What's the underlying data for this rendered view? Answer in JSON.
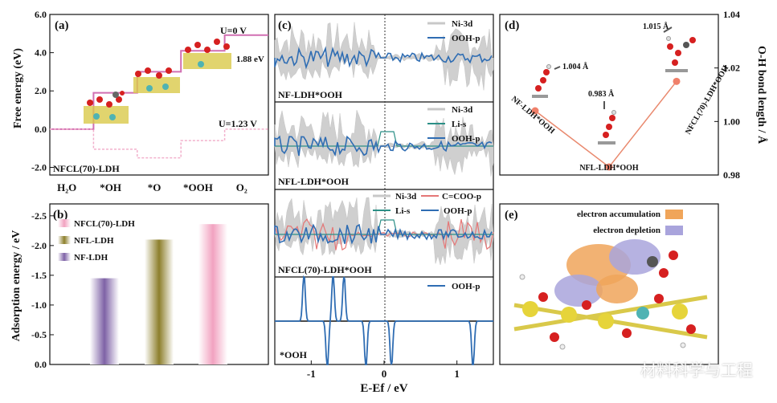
{
  "panel_labels": {
    "a": "(a)",
    "b": "(b)",
    "c": "(c)",
    "d": "(d)",
    "e": "(e)"
  },
  "watermark": "材料科学与工程",
  "chart_data": [
    {
      "id": "a",
      "type": "line",
      "title": "",
      "xlabel": "",
      "ylabel": "Free energy (eV)",
      "ylim": [
        -2.4,
        6.0
      ],
      "yticks": [
        "6.0",
        "4.0",
        "2.0",
        "0.0",
        "-2.0"
      ],
      "ytick_values": [
        6,
        4,
        2,
        0,
        -2
      ],
      "categories": [
        "H₂O",
        "*OH",
        "*O",
        "*OOH",
        "O₂"
      ],
      "series": [
        {
          "name": "U=0 V",
          "values": [
            0.0,
            1.9,
            3.0,
            4.1,
            4.92
          ],
          "color": "#d16fb2"
        },
        {
          "name": "U=1.23 V",
          "values": [
            0.0,
            -1.05,
            -1.5,
            -0.6,
            0.0
          ],
          "color": "#f2b0cc"
        }
      ],
      "annotations": {
        "u0": "U=0 V",
        "gap": "1.88 eV",
        "u123": "U=1.23 V",
        "sample": "NFCL(70)-LDH"
      }
    },
    {
      "id": "b",
      "type": "bar",
      "title": "",
      "ylabel": "Adsorption energy / eV",
      "ylim": [
        0.0,
        -2.6
      ],
      "yticks": [
        "-2.5",
        "-2.0",
        "-1.5",
        "-1.0",
        "-0.5",
        "0.0"
      ],
      "ytick_values": [
        -2.5,
        -2.0,
        -1.5,
        -1.0,
        -0.5,
        0.0
      ],
      "categories": [
        "NF-LDH",
        "NFL-LDH",
        "NFCL(70)-LDH"
      ],
      "values": [
        -1.45,
        -2.1,
        -2.36
      ],
      "colors": [
        "#7e62a6",
        "#8d7f2c",
        "#f2a2c0"
      ],
      "legend": [
        "NFCL(70)-LDH",
        "NFL-LDH",
        "NF-LDH"
      ]
    },
    {
      "id": "c",
      "type": "line",
      "title": "",
      "xlabel": "E-Ef / eV",
      "xticks": [
        "-1",
        "0",
        "1"
      ],
      "xtick_values": [
        -1,
        0,
        1
      ],
      "xlim": [
        -1.5,
        1.5
      ],
      "subpanels": [
        {
          "label": "NF-LDH*OOH",
          "legend": [
            "Ni-3d",
            "OOH-p"
          ]
        },
        {
          "label": "NFL-LDH*OOH",
          "legend": [
            "Ni-3d",
            "Li-s",
            "OOH-p"
          ]
        },
        {
          "label": "NFCL(70)-LDH*OOH",
          "legend": [
            "Ni-3d",
            "C=COO-p",
            "Li-s",
            "OOH-p"
          ]
        },
        {
          "label": "*OOH",
          "legend": [
            "OOH-p"
          ]
        }
      ],
      "series_colors": {
        "Ni-3d": "#c8c8c8",
        "OOH-p": "#2f6db3",
        "Li-s": "#2b8f86",
        "C=COO-p": "#e57777"
      }
    },
    {
      "id": "d",
      "type": "line",
      "ylabel": "O-H bond length / Å",
      "ylim": [
        0.98,
        1.04
      ],
      "yticks": [
        "1.04",
        "1.02",
        "1.00",
        "0.98"
      ],
      "ytick_values": [
        1.04,
        1.02,
        1.0,
        0.98
      ],
      "categories": [
        "NF-LDH*OOH",
        "NFL-LDH*OOH",
        "NFCL(70)-LDH*OOH"
      ],
      "values": [
        1.004,
        0.983,
        1.015
      ],
      "value_labels": [
        "1.004 Å",
        "0.983 Å",
        "1.015 Å"
      ]
    }
  ],
  "panel_e": {
    "legend": [
      "electron accumulation",
      "electron depletion"
    ],
    "colors": [
      "#f0a55a",
      "#a9a4dc"
    ]
  }
}
